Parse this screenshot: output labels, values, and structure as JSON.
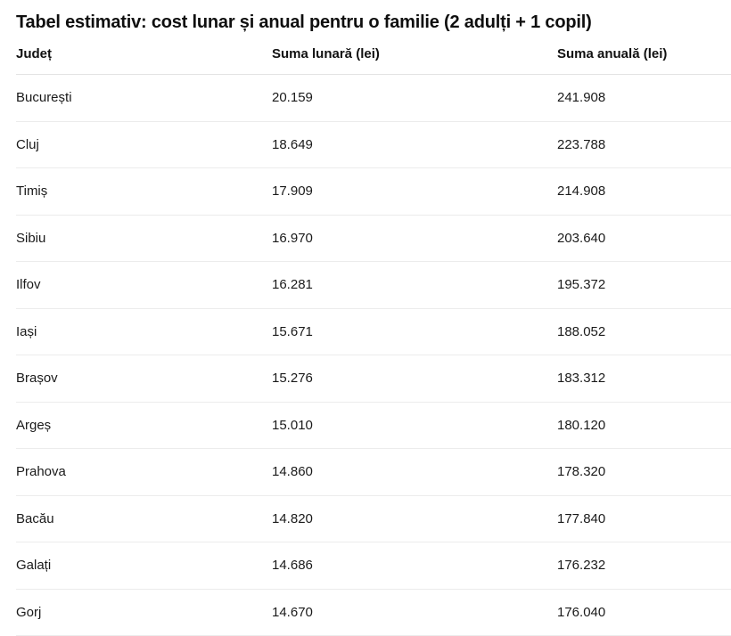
{
  "title": "Tabel estimativ: cost lunar și anual pentru o familie (2 adulți + 1 copil)",
  "colors": {
    "background": "#ffffff",
    "title_text": "#0f0f0f",
    "header_text": "#111111",
    "body_text": "#1a1a1a",
    "header_divider": "#e3e3e3",
    "row_divider": "#ececec"
  },
  "table": {
    "columns": [
      "Județ",
      "Suma lunară (lei)",
      "Suma anuală (lei)"
    ],
    "rows": [
      {
        "judet": "București",
        "lunar": "20.159",
        "anual": "241.908"
      },
      {
        "judet": "Cluj",
        "lunar": "18.649",
        "anual": "223.788"
      },
      {
        "judet": "Timiș",
        "lunar": "17.909",
        "anual": "214.908"
      },
      {
        "judet": "Sibiu",
        "lunar": "16.970",
        "anual": "203.640"
      },
      {
        "judet": "Ilfov",
        "lunar": "16.281",
        "anual": "195.372"
      },
      {
        "judet": "Iași",
        "lunar": "15.671",
        "anual": "188.052"
      },
      {
        "judet": "Brașov",
        "lunar": "15.276",
        "anual": "183.312"
      },
      {
        "judet": "Argeș",
        "lunar": "15.010",
        "anual": "180.120"
      },
      {
        "judet": "Prahova",
        "lunar": "14.860",
        "anual": "178.320"
      },
      {
        "judet": "Bacău",
        "lunar": "14.820",
        "anual": "177.840"
      },
      {
        "judet": "Galați",
        "lunar": "14.686",
        "anual": "176.232"
      },
      {
        "judet": "Gorj",
        "lunar": "14.670",
        "anual": "176.040"
      }
    ]
  }
}
